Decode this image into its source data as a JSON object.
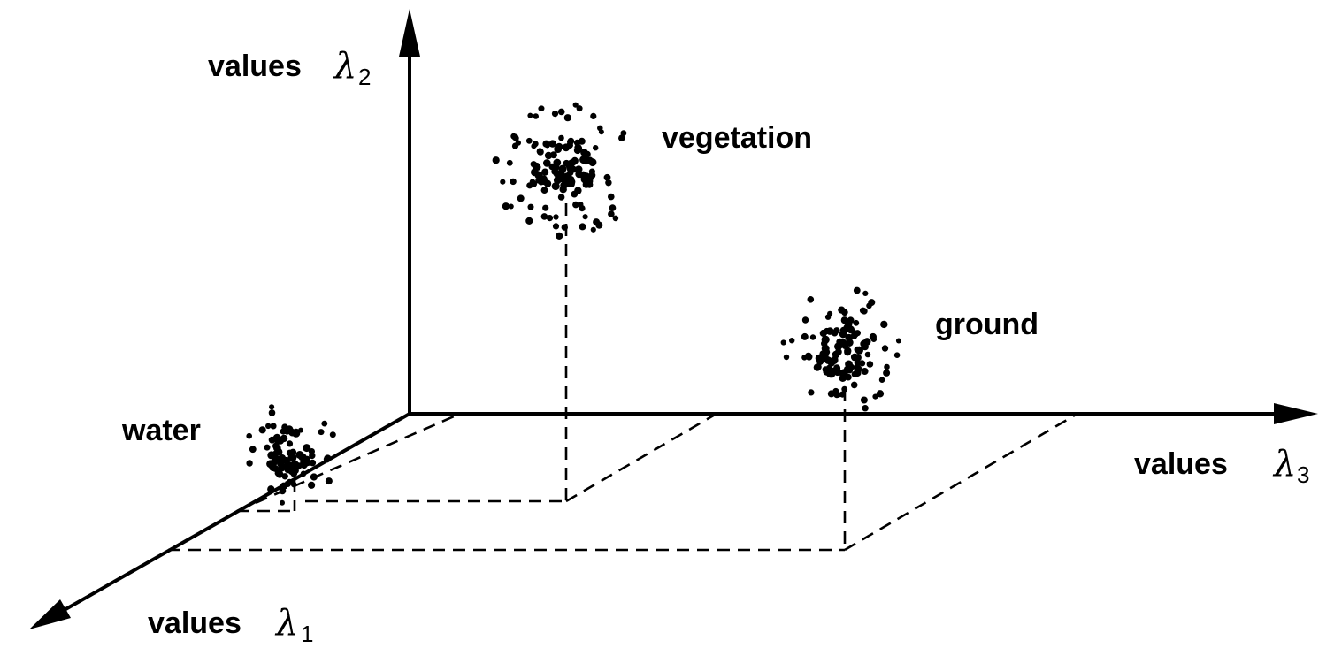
{
  "axes": {
    "lambda1": {
      "word": "values",
      "symbol": "λ",
      "subscript": "1"
    },
    "lambda2": {
      "word": "values",
      "symbol": "λ",
      "subscript": "2"
    },
    "lambda3": {
      "word": "values",
      "symbol": "λ",
      "subscript": "3"
    }
  },
  "clusters": {
    "water": {
      "label": "water"
    },
    "vegetation": {
      "label": "vegetation"
    },
    "ground": {
      "label": "ground"
    }
  },
  "colors": {
    "ink": "#000000",
    "background": "#ffffff"
  }
}
